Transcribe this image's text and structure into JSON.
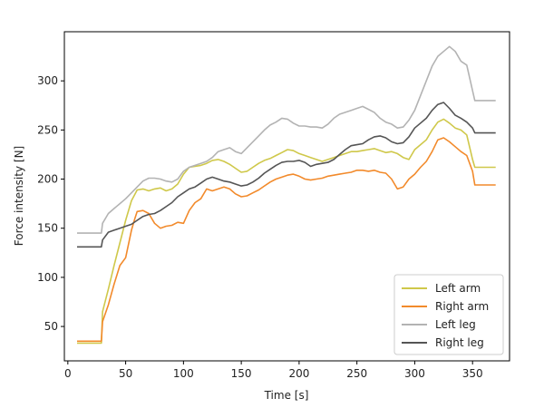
{
  "chart_data": {
    "type": "line",
    "title": "",
    "xlabel": "Time [s]",
    "ylabel": "Force intensity [N]",
    "xlim": [
      -3,
      382
    ],
    "ylim": [
      15,
      350
    ],
    "xticks": [
      0,
      50,
      100,
      150,
      200,
      250,
      300,
      350
    ],
    "yticks": [
      50,
      100,
      150,
      200,
      250,
      300
    ],
    "grid": false,
    "legend": "lower-right",
    "series": [
      {
        "name": "Left arm",
        "color": "#cfc84a",
        "points": [
          [
            8,
            33
          ],
          [
            29,
            33
          ],
          [
            30,
            65
          ],
          [
            35,
            88
          ],
          [
            40,
            112
          ],
          [
            45,
            135
          ],
          [
            50,
            158
          ],
          [
            55,
            178
          ],
          [
            60,
            189
          ],
          [
            65,
            190
          ],
          [
            70,
            188
          ],
          [
            75,
            190
          ],
          [
            80,
            191
          ],
          [
            85,
            188
          ],
          [
            90,
            190
          ],
          [
            95,
            195
          ],
          [
            100,
            205
          ],
          [
            105,
            212
          ],
          [
            110,
            213
          ],
          [
            115,
            214
          ],
          [
            120,
            216
          ],
          [
            125,
            219
          ],
          [
            130,
            220
          ],
          [
            135,
            218
          ],
          [
            140,
            215
          ],
          [
            145,
            211
          ],
          [
            150,
            207
          ],
          [
            155,
            208
          ],
          [
            160,
            212
          ],
          [
            165,
            216
          ],
          [
            170,
            219
          ],
          [
            175,
            221
          ],
          [
            180,
            224
          ],
          [
            185,
            227
          ],
          [
            190,
            230
          ],
          [
            195,
            229
          ],
          [
            200,
            226
          ],
          [
            205,
            224
          ],
          [
            210,
            222
          ],
          [
            215,
            220
          ],
          [
            220,
            218
          ],
          [
            225,
            220
          ],
          [
            230,
            222
          ],
          [
            235,
            224
          ],
          [
            240,
            226
          ],
          [
            245,
            228
          ],
          [
            250,
            228
          ],
          [
            255,
            229
          ],
          [
            260,
            230
          ],
          [
            265,
            231
          ],
          [
            270,
            229
          ],
          [
            275,
            227
          ],
          [
            280,
            228
          ],
          [
            285,
            226
          ],
          [
            290,
            222
          ],
          [
            295,
            220
          ],
          [
            300,
            230
          ],
          [
            305,
            235
          ],
          [
            310,
            240
          ],
          [
            315,
            250
          ],
          [
            320,
            258
          ],
          [
            325,
            261
          ],
          [
            330,
            257
          ],
          [
            335,
            252
          ],
          [
            340,
            250
          ],
          [
            345,
            245
          ],
          [
            350,
            220
          ],
          [
            352,
            212
          ],
          [
            370,
            212
          ]
        ]
      },
      {
        "name": "Right arm",
        "color": "#f28a2b",
        "points": [
          [
            8,
            35
          ],
          [
            29,
            35
          ],
          [
            30,
            55
          ],
          [
            35,
            72
          ],
          [
            40,
            93
          ],
          [
            45,
            112
          ],
          [
            50,
            120
          ],
          [
            55,
            148
          ],
          [
            58,
            160
          ],
          [
            60,
            167
          ],
          [
            65,
            168
          ],
          [
            70,
            165
          ],
          [
            75,
            155
          ],
          [
            80,
            150
          ],
          [
            85,
            152
          ],
          [
            90,
            153
          ],
          [
            95,
            156
          ],
          [
            100,
            155
          ],
          [
            105,
            168
          ],
          [
            110,
            176
          ],
          [
            115,
            180
          ],
          [
            120,
            190
          ],
          [
            125,
            188
          ],
          [
            130,
            190
          ],
          [
            135,
            192
          ],
          [
            140,
            190
          ],
          [
            145,
            185
          ],
          [
            150,
            182
          ],
          [
            155,
            183
          ],
          [
            160,
            186
          ],
          [
            165,
            189
          ],
          [
            170,
            193
          ],
          [
            175,
            197
          ],
          [
            180,
            200
          ],
          [
            185,
            202
          ],
          [
            190,
            204
          ],
          [
            195,
            205
          ],
          [
            200,
            203
          ],
          [
            205,
            200
          ],
          [
            210,
            199
          ],
          [
            215,
            200
          ],
          [
            220,
            201
          ],
          [
            225,
            203
          ],
          [
            230,
            204
          ],
          [
            235,
            205
          ],
          [
            240,
            206
          ],
          [
            245,
            207
          ],
          [
            250,
            209
          ],
          [
            255,
            209
          ],
          [
            260,
            208
          ],
          [
            265,
            209
          ],
          [
            270,
            207
          ],
          [
            275,
            206
          ],
          [
            280,
            200
          ],
          [
            285,
            190
          ],
          [
            290,
            192
          ],
          [
            295,
            200
          ],
          [
            300,
            205
          ],
          [
            305,
            212
          ],
          [
            310,
            218
          ],
          [
            315,
            228
          ],
          [
            320,
            240
          ],
          [
            325,
            242
          ],
          [
            330,
            238
          ],
          [
            335,
            233
          ],
          [
            340,
            228
          ],
          [
            345,
            224
          ],
          [
            350,
            208
          ],
          [
            352,
            194
          ],
          [
            370,
            194
          ]
        ]
      },
      {
        "name": "Left leg",
        "color": "#b3b3b3",
        "points": [
          [
            8,
            145
          ],
          [
            29,
            145
          ],
          [
            30,
            155
          ],
          [
            35,
            165
          ],
          [
            40,
            170
          ],
          [
            45,
            175
          ],
          [
            50,
            180
          ],
          [
            55,
            186
          ],
          [
            60,
            192
          ],
          [
            65,
            198
          ],
          [
            70,
            201
          ],
          [
            75,
            201
          ],
          [
            80,
            200
          ],
          [
            85,
            198
          ],
          [
            90,
            197
          ],
          [
            95,
            200
          ],
          [
            100,
            208
          ],
          [
            105,
            212
          ],
          [
            110,
            214
          ],
          [
            115,
            216
          ],
          [
            120,
            218
          ],
          [
            125,
            222
          ],
          [
            130,
            228
          ],
          [
            135,
            230
          ],
          [
            140,
            232
          ],
          [
            145,
            228
          ],
          [
            150,
            226
          ],
          [
            155,
            232
          ],
          [
            160,
            238
          ],
          [
            165,
            244
          ],
          [
            170,
            250
          ],
          [
            175,
            255
          ],
          [
            180,
            258
          ],
          [
            185,
            262
          ],
          [
            190,
            261
          ],
          [
            195,
            257
          ],
          [
            200,
            254
          ],
          [
            205,
            254
          ],
          [
            210,
            253
          ],
          [
            215,
            253
          ],
          [
            220,
            252
          ],
          [
            225,
            256
          ],
          [
            230,
            262
          ],
          [
            235,
            266
          ],
          [
            240,
            268
          ],
          [
            245,
            270
          ],
          [
            250,
            272
          ],
          [
            255,
            274
          ],
          [
            260,
            271
          ],
          [
            265,
            268
          ],
          [
            270,
            262
          ],
          [
            275,
            258
          ],
          [
            280,
            256
          ],
          [
            285,
            252
          ],
          [
            290,
            253
          ],
          [
            295,
            260
          ],
          [
            300,
            270
          ],
          [
            305,
            285
          ],
          [
            310,
            300
          ],
          [
            315,
            315
          ],
          [
            320,
            325
          ],
          [
            325,
            330
          ],
          [
            330,
            335
          ],
          [
            335,
            330
          ],
          [
            340,
            320
          ],
          [
            345,
            316
          ],
          [
            350,
            290
          ],
          [
            352,
            280
          ],
          [
            370,
            280
          ]
        ]
      },
      {
        "name": "Right leg",
        "color": "#555555",
        "points": [
          [
            8,
            131
          ],
          [
            29,
            131
          ],
          [
            30,
            138
          ],
          [
            35,
            146
          ],
          [
            40,
            148
          ],
          [
            45,
            150
          ],
          [
            50,
            152
          ],
          [
            55,
            154
          ],
          [
            60,
            158
          ],
          [
            65,
            162
          ],
          [
            70,
            164
          ],
          [
            75,
            165
          ],
          [
            80,
            168
          ],
          [
            85,
            172
          ],
          [
            90,
            176
          ],
          [
            95,
            182
          ],
          [
            100,
            186
          ],
          [
            105,
            190
          ],
          [
            110,
            192
          ],
          [
            115,
            196
          ],
          [
            120,
            200
          ],
          [
            125,
            202
          ],
          [
            130,
            200
          ],
          [
            135,
            198
          ],
          [
            140,
            197
          ],
          [
            145,
            195
          ],
          [
            150,
            193
          ],
          [
            155,
            194
          ],
          [
            160,
            197
          ],
          [
            165,
            201
          ],
          [
            170,
            206
          ],
          [
            175,
            210
          ],
          [
            180,
            214
          ],
          [
            185,
            217
          ],
          [
            190,
            218
          ],
          [
            195,
            218
          ],
          [
            200,
            219
          ],
          [
            205,
            217
          ],
          [
            210,
            213
          ],
          [
            215,
            215
          ],
          [
            220,
            216
          ],
          [
            225,
            217
          ],
          [
            230,
            220
          ],
          [
            235,
            225
          ],
          [
            240,
            230
          ],
          [
            245,
            234
          ],
          [
            250,
            235
          ],
          [
            255,
            236
          ],
          [
            260,
            240
          ],
          [
            265,
            243
          ],
          [
            270,
            244
          ],
          [
            275,
            242
          ],
          [
            280,
            238
          ],
          [
            285,
            236
          ],
          [
            290,
            237
          ],
          [
            295,
            243
          ],
          [
            300,
            252
          ],
          [
            305,
            257
          ],
          [
            310,
            262
          ],
          [
            315,
            270
          ],
          [
            320,
            276
          ],
          [
            325,
            278
          ],
          [
            330,
            272
          ],
          [
            335,
            265
          ],
          [
            340,
            262
          ],
          [
            345,
            258
          ],
          [
            350,
            252
          ],
          [
            352,
            247
          ],
          [
            370,
            247
          ]
        ]
      }
    ]
  }
}
